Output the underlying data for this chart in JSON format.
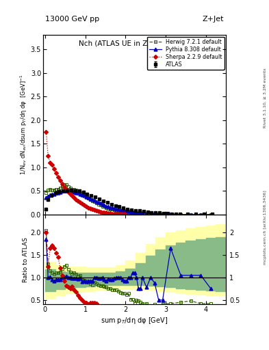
{
  "title_top": "13000 GeV pp",
  "title_top_right": "Z+Jet",
  "plot_title": "Nch (ATLAS UE in Z production)",
  "ylabel_main": "1/N$_{ev}$ dN$_{ev}$/dsum p$_{T}$/dη dφ  [GeV]$^{-1}$",
  "ylabel_ratio": "Ratio to ATLAS",
  "xlabel": "sum p$_{T}$/dη dφ [GeV]",
  "right_label1": "Rivet 3.1.10, ≥ 3.2M events",
  "right_label2": "mcplots.cern.ch [arXiv:1306.3436]",
  "ylim_main": [
    0,
    3.8
  ],
  "ylim_ratio": [
    0.4,
    2.4
  ],
  "xlim": [
    -0.05,
    4.5
  ],
  "atlas_x": [
    0.025,
    0.075,
    0.15,
    0.25,
    0.35,
    0.45,
    0.55,
    0.65,
    0.75,
    0.85,
    0.95,
    1.05,
    1.15,
    1.25,
    1.35,
    1.45,
    1.55,
    1.65,
    1.75,
    1.85,
    1.95,
    2.05,
    2.15,
    2.25,
    2.35,
    2.45,
    2.55,
    2.65,
    2.75,
    2.85,
    2.95,
    3.05,
    3.15,
    3.25,
    3.35,
    3.55,
    3.75,
    3.95,
    4.15
  ],
  "atlas_y": [
    0.12,
    0.32,
    0.41,
    0.47,
    0.49,
    0.5,
    0.51,
    0.52,
    0.51,
    0.5,
    0.48,
    0.44,
    0.4,
    0.37,
    0.33,
    0.29,
    0.26,
    0.22,
    0.19,
    0.17,
    0.14,
    0.12,
    0.1,
    0.09,
    0.08,
    0.07,
    0.06,
    0.05,
    0.04,
    0.04,
    0.03,
    0.03,
    0.02,
    0.02,
    0.02,
    0.01,
    0.01,
    0.01,
    0.01
  ],
  "atlas_yerr": [
    0.02,
    0.02,
    0.02,
    0.02,
    0.02,
    0.02,
    0.02,
    0.02,
    0.02,
    0.02,
    0.02,
    0.02,
    0.02,
    0.02,
    0.015,
    0.015,
    0.015,
    0.01,
    0.01,
    0.01,
    0.01,
    0.008,
    0.008,
    0.007,
    0.006,
    0.005,
    0.004,
    0.004,
    0.003,
    0.003,
    0.003,
    0.002,
    0.002,
    0.002,
    0.002,
    0.001,
    0.001,
    0.001,
    0.001
  ],
  "herwig_x": [
    0.025,
    0.075,
    0.125,
    0.175,
    0.225,
    0.275,
    0.325,
    0.375,
    0.425,
    0.475,
    0.525,
    0.575,
    0.625,
    0.675,
    0.725,
    0.775,
    0.825,
    0.875,
    0.925,
    0.975,
    1.025,
    1.075,
    1.125,
    1.175,
    1.225,
    1.275,
    1.325,
    1.375,
    1.425,
    1.475,
    1.525,
    1.575,
    1.625,
    1.675,
    1.725,
    1.775,
    1.825,
    1.875,
    1.925,
    1.975,
    2.025,
    2.075,
    2.125,
    2.175,
    2.225,
    2.275,
    2.325,
    2.375,
    2.425,
    2.525,
    2.625,
    2.725,
    2.825,
    2.925,
    3.125,
    3.375,
    3.625,
    3.875,
    4.125
  ],
  "herwig_y": [
    0.46,
    0.52,
    0.54,
    0.52,
    0.52,
    0.54,
    0.54,
    0.57,
    0.6,
    0.63,
    0.63,
    0.6,
    0.57,
    0.54,
    0.54,
    0.52,
    0.49,
    0.47,
    0.44,
    0.41,
    0.38,
    0.35,
    0.32,
    0.29,
    0.27,
    0.24,
    0.22,
    0.2,
    0.18,
    0.17,
    0.15,
    0.13,
    0.12,
    0.11,
    0.1,
    0.09,
    0.08,
    0.07,
    0.06,
    0.06,
    0.05,
    0.05,
    0.04,
    0.04,
    0.03,
    0.03,
    0.03,
    0.02,
    0.02,
    0.02,
    0.01,
    0.01,
    0.01,
    0.01,
    0.005,
    0.003,
    0.002,
    0.001,
    0.001
  ],
  "pythia_x": [
    0.025,
    0.075,
    0.125,
    0.175,
    0.225,
    0.275,
    0.325,
    0.375,
    0.425,
    0.475,
    0.525,
    0.575,
    0.625,
    0.675,
    0.725,
    0.775,
    0.825,
    0.875,
    0.925,
    0.975,
    1.025,
    1.075,
    1.125,
    1.175,
    1.225,
    1.275,
    1.325,
    1.375,
    1.425,
    1.475,
    1.525,
    1.575,
    1.625,
    1.675,
    1.725,
    1.775,
    1.825,
    1.875,
    1.925,
    1.975,
    2.025,
    2.075,
    2.125,
    2.175,
    2.225,
    2.275,
    2.325,
    2.375,
    2.425,
    2.525,
    2.625,
    2.725,
    2.825,
    2.925,
    3.125,
    3.375,
    3.625,
    3.875,
    4.125
  ],
  "pythia_y": [
    0.36,
    0.39,
    0.42,
    0.43,
    0.44,
    0.46,
    0.47,
    0.48,
    0.5,
    0.51,
    0.51,
    0.5,
    0.5,
    0.49,
    0.48,
    0.47,
    0.46,
    0.44,
    0.42,
    0.4,
    0.38,
    0.36,
    0.34,
    0.32,
    0.3,
    0.28,
    0.26,
    0.24,
    0.22,
    0.2,
    0.18,
    0.17,
    0.15,
    0.14,
    0.13,
    0.12,
    0.11,
    0.1,
    0.09,
    0.08,
    0.07,
    0.07,
    0.06,
    0.06,
    0.05,
    0.05,
    0.04,
    0.04,
    0.04,
    0.03,
    0.02,
    0.02,
    0.01,
    0.01,
    0.01,
    0.005,
    0.004,
    0.003,
    0.003
  ],
  "sherpa_x": [
    0.025,
    0.075,
    0.125,
    0.175,
    0.225,
    0.275,
    0.325,
    0.375,
    0.425,
    0.475,
    0.525,
    0.575,
    0.625,
    0.675,
    0.725,
    0.775,
    0.825,
    0.875,
    0.925,
    0.975,
    1.025,
    1.075,
    1.125,
    1.175,
    1.225,
    1.275,
    1.325,
    1.375,
    1.425,
    1.475,
    1.525,
    1.575,
    1.625,
    1.675,
    1.725,
    1.775,
    1.825,
    1.875,
    1.925,
    1.975
  ],
  "sherpa_y": [
    1.75,
    1.25,
    1.1,
    1.05,
    0.97,
    0.88,
    0.8,
    0.72,
    0.65,
    0.58,
    0.53,
    0.48,
    0.43,
    0.4,
    0.36,
    0.32,
    0.29,
    0.26,
    0.23,
    0.2,
    0.17,
    0.15,
    0.13,
    0.11,
    0.1,
    0.08,
    0.07,
    0.06,
    0.05,
    0.04,
    0.04,
    0.03,
    0.03,
    0.02,
    0.02,
    0.02,
    0.01,
    0.01,
    0.01,
    0.01
  ],
  "atlas_color": "#000000",
  "herwig_color": "#336600",
  "pythia_color": "#0000bb",
  "sherpa_color": "#cc0000",
  "band_yellow": "#ffffaa",
  "band_green": "#88bb88",
  "ratio_herwig_x": [
    0.025,
    0.075,
    0.125,
    0.175,
    0.225,
    0.275,
    0.325,
    0.375,
    0.425,
    0.475,
    0.525,
    0.575,
    0.625,
    0.675,
    0.725,
    0.775,
    0.825,
    0.875,
    0.925,
    0.975,
    1.025,
    1.075,
    1.125,
    1.175,
    1.225,
    1.275,
    1.325,
    1.375,
    1.425,
    1.475,
    1.525,
    1.575,
    1.625,
    1.675,
    1.725,
    1.775,
    1.825,
    1.875,
    1.925,
    1.975,
    2.025,
    2.075,
    2.125,
    2.175,
    2.225,
    2.275,
    2.325,
    2.375,
    2.425,
    2.525,
    2.625,
    2.725,
    2.825,
    2.925,
    3.125,
    3.375,
    3.625,
    3.875,
    4.125
  ],
  "ratio_herwig_y": [
    2.05,
    1.3,
    1.15,
    1.1,
    1.08,
    1.1,
    1.1,
    1.12,
    1.2,
    1.25,
    1.28,
    1.18,
    1.12,
    1.08,
    1.1,
    1.08,
    1.03,
    1.05,
    0.96,
    0.94,
    0.92,
    0.9,
    0.87,
    0.84,
    0.9,
    0.86,
    0.83,
    0.82,
    0.82,
    0.8,
    0.78,
    0.75,
    0.75,
    0.73,
    0.73,
    0.73,
    0.7,
    0.67,
    0.65,
    0.65,
    0.62,
    0.65,
    0.52,
    0.52,
    0.42,
    0.5,
    0.48,
    0.45,
    0.42,
    0.42,
    0.35,
    0.4,
    0.38,
    0.42,
    0.42,
    0.45,
    0.48,
    0.42,
    0.42
  ],
  "ratio_pythia_x": [
    0.025,
    0.075,
    0.125,
    0.175,
    0.225,
    0.275,
    0.325,
    0.375,
    0.425,
    0.475,
    0.525,
    0.575,
    0.625,
    0.675,
    0.725,
    0.775,
    0.825,
    0.875,
    0.925,
    0.975,
    1.025,
    1.075,
    1.125,
    1.175,
    1.225,
    1.275,
    1.325,
    1.375,
    1.425,
    1.475,
    1.525,
    1.575,
    1.625,
    1.675,
    1.725,
    1.775,
    1.825,
    1.875,
    1.925,
    1.975,
    2.025,
    2.075,
    2.125,
    2.175,
    2.225,
    2.275,
    2.325,
    2.375,
    2.425,
    2.525,
    2.625,
    2.725,
    2.825,
    2.925,
    3.125,
    3.375,
    3.625,
    3.875,
    4.125
  ],
  "ratio_pythia_y": [
    1.85,
    1.0,
    1.02,
    0.95,
    0.92,
    0.95,
    0.96,
    0.96,
    1.0,
    1.02,
    1.03,
    1.0,
    1.0,
    0.98,
    0.98,
    0.98,
    0.97,
    0.98,
    0.91,
    0.92,
    0.91,
    0.92,
    0.92,
    0.92,
    1.0,
    1.0,
    0.98,
    0.98,
    1.0,
    0.96,
    0.93,
    0.97,
    0.95,
    0.95,
    0.98,
    1.0,
    1.0,
    1.0,
    0.95,
    0.93,
    0.93,
    1.0,
    1.0,
    1.1,
    1.1,
    1.0,
    0.75,
    0.75,
    1.0,
    0.78,
    1.0,
    0.88,
    0.5,
    0.5,
    1.65,
    1.05,
    1.05,
    1.05,
    0.75
  ],
  "ratio_sherpa_x": [
    0.025,
    0.075,
    0.125,
    0.175,
    0.225,
    0.275,
    0.325,
    0.375,
    0.425,
    0.475,
    0.525,
    0.575,
    0.625,
    0.675,
    0.725,
    0.775,
    0.825,
    0.875,
    0.925,
    0.975,
    1.025,
    1.075,
    1.125,
    1.175,
    1.225,
    1.275
  ],
  "ratio_sherpa_y": [
    2.0,
    1.25,
    1.65,
    1.72,
    1.65,
    1.55,
    1.45,
    1.22,
    1.05,
    0.92,
    0.82,
    0.78,
    0.75,
    0.8,
    0.73,
    0.68,
    0.6,
    0.55,
    0.5,
    0.45,
    0.43,
    0.4,
    0.43,
    0.43,
    0.43,
    0.42
  ],
  "band_x": [
    0.0,
    0.25,
    0.5,
    0.75,
    1.0,
    1.25,
    1.5,
    1.75,
    2.0,
    2.25,
    2.5,
    2.75,
    3.0,
    3.25,
    3.5,
    3.75,
    4.0,
    4.25,
    4.5
  ],
  "band_outer_low": [
    0.55,
    0.6,
    0.65,
    0.68,
    0.7,
    0.72,
    0.73,
    0.74,
    0.74,
    0.73,
    0.72,
    0.7,
    0.68,
    0.65,
    0.63,
    0.62,
    0.6,
    0.6,
    0.6
  ],
  "band_outer_high": [
    1.35,
    1.28,
    1.25,
    1.24,
    1.23,
    1.23,
    1.23,
    1.28,
    1.38,
    1.55,
    1.75,
    1.9,
    2.0,
    2.05,
    2.1,
    2.12,
    2.15,
    2.18,
    2.2
  ],
  "band_inner_low": [
    0.7,
    0.74,
    0.77,
    0.79,
    0.81,
    0.82,
    0.83,
    0.84,
    0.84,
    0.83,
    0.82,
    0.8,
    0.78,
    0.76,
    0.74,
    0.72,
    0.71,
    0.7,
    0.7
  ],
  "band_inner_high": [
    1.18,
    1.14,
    1.12,
    1.11,
    1.11,
    1.11,
    1.11,
    1.14,
    1.2,
    1.32,
    1.48,
    1.62,
    1.72,
    1.78,
    1.82,
    1.85,
    1.88,
    1.9,
    1.92
  ]
}
